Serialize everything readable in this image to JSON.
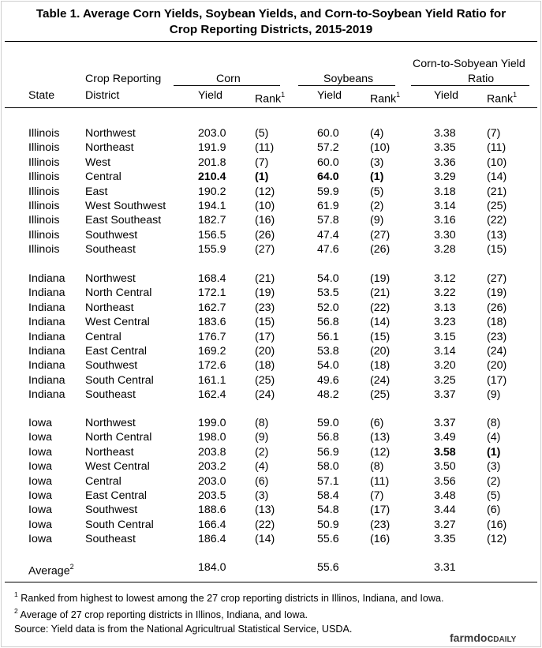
{
  "title": {
    "line1": "Table 1.  Average Corn Yields, Soybean Yields, and Corn-to-Soybean Yield Ratio for",
    "line2": "Crop Reporting Districts, 2015-2019"
  },
  "headers": {
    "state": "State",
    "district_line1": "Crop Reporting",
    "district_line2": "District",
    "corn": "Corn",
    "soybeans": "Soybeans",
    "ratio_line1": "Corn-to-Sobyean Yield",
    "ratio_line2": "Ratio",
    "yield": "Yield",
    "rank": "Rank",
    "rank_sup": "1"
  },
  "groups": [
    {
      "rows": [
        {
          "state": "Illinois",
          "district": "Northwest",
          "corn_yield": "203.0",
          "corn_rank": "(5)",
          "soy_yield": "60.0",
          "soy_rank": "(4)",
          "ratio_yield": "3.38",
          "ratio_rank": "(7)"
        },
        {
          "state": "Illinois",
          "district": "Northeast",
          "corn_yield": "191.9",
          "corn_rank": "(11)",
          "soy_yield": "57.2",
          "soy_rank": "(10)",
          "ratio_yield": "3.35",
          "ratio_rank": "(11)"
        },
        {
          "state": "Illinois",
          "district": "West",
          "corn_yield": "201.8",
          "corn_rank": "(7)",
          "soy_yield": "60.0",
          "soy_rank": "(3)",
          "ratio_yield": "3.36",
          "ratio_rank": "(10)"
        },
        {
          "state": "Illinois",
          "district": "Central",
          "corn_yield": "210.4",
          "corn_rank": "(1)",
          "soy_yield": "64.0",
          "soy_rank": "(1)",
          "ratio_yield": "3.29",
          "ratio_rank": "(14)"
        },
        {
          "state": "Illinois",
          "district": "East",
          "corn_yield": "190.2",
          "corn_rank": "(12)",
          "soy_yield": "59.9",
          "soy_rank": "(5)",
          "ratio_yield": "3.18",
          "ratio_rank": "(21)"
        },
        {
          "state": "Illinois",
          "district": "West Southwest",
          "corn_yield": "194.1",
          "corn_rank": "(10)",
          "soy_yield": "61.9",
          "soy_rank": "(2)",
          "ratio_yield": "3.14",
          "ratio_rank": "(25)"
        },
        {
          "state": "Illinois",
          "district": "East Southeast",
          "corn_yield": "182.7",
          "corn_rank": "(16)",
          "soy_yield": "57.8",
          "soy_rank": "(9)",
          "ratio_yield": "3.16",
          "ratio_rank": "(22)"
        },
        {
          "state": "Illinois",
          "district": "Southwest",
          "corn_yield": "156.5",
          "corn_rank": "(26)",
          "soy_yield": "47.4",
          "soy_rank": "(27)",
          "ratio_yield": "3.30",
          "ratio_rank": "(13)"
        },
        {
          "state": "Illinois",
          "district": "Southeast",
          "corn_yield": "155.9",
          "corn_rank": "(27)",
          "soy_yield": "47.6",
          "soy_rank": "(26)",
          "ratio_yield": "3.28",
          "ratio_rank": "(15)"
        }
      ]
    },
    {
      "rows": [
        {
          "state": "Indiana",
          "district": "Northwest",
          "corn_yield": "168.4",
          "corn_rank": "(21)",
          "soy_yield": "54.0",
          "soy_rank": "(19)",
          "ratio_yield": "3.12",
          "ratio_rank": "(27)"
        },
        {
          "state": "Indiana",
          "district": "North Central",
          "corn_yield": "172.1",
          "corn_rank": "(19)",
          "soy_yield": "53.5",
          "soy_rank": "(21)",
          "ratio_yield": "3.22",
          "ratio_rank": "(19)"
        },
        {
          "state": "Indiana",
          "district": "Northeast",
          "corn_yield": "162.7",
          "corn_rank": "(23)",
          "soy_yield": "52.0",
          "soy_rank": "(22)",
          "ratio_yield": "3.13",
          "ratio_rank": "(26)"
        },
        {
          "state": "Indiana",
          "district": "West Central",
          "corn_yield": "183.6",
          "corn_rank": "(15)",
          "soy_yield": "56.8",
          "soy_rank": "(14)",
          "ratio_yield": "3.23",
          "ratio_rank": "(18)"
        },
        {
          "state": "Indiana",
          "district": "Central",
          "corn_yield": "176.7",
          "corn_rank": "(17)",
          "soy_yield": "56.1",
          "soy_rank": "(15)",
          "ratio_yield": "3.15",
          "ratio_rank": "(23)"
        },
        {
          "state": "Indiana",
          "district": "East Central",
          "corn_yield": "169.2",
          "corn_rank": "(20)",
          "soy_yield": "53.8",
          "soy_rank": "(20)",
          "ratio_yield": "3.14",
          "ratio_rank": "(24)"
        },
        {
          "state": "Indiana",
          "district": "Southwest",
          "corn_yield": "172.6",
          "corn_rank": "(18)",
          "soy_yield": "54.0",
          "soy_rank": "(18)",
          "ratio_yield": "3.20",
          "ratio_rank": "(20)"
        },
        {
          "state": "Indiana",
          "district": "South Central",
          "corn_yield": "161.1",
          "corn_rank": "(25)",
          "soy_yield": "49.6",
          "soy_rank": "(24)",
          "ratio_yield": "3.25",
          "ratio_rank": "(17)"
        },
        {
          "state": "Indiana",
          "district": "Southeast",
          "corn_yield": "162.4",
          "corn_rank": "(24)",
          "soy_yield": "48.2",
          "soy_rank": "(25)",
          "ratio_yield": "3.37",
          "ratio_rank": "(9)"
        }
      ]
    },
    {
      "rows": [
        {
          "state": "Iowa",
          "district": "Northwest",
          "corn_yield": "199.0",
          "corn_rank": "(8)",
          "soy_yield": "59.0",
          "soy_rank": "(6)",
          "ratio_yield": "3.37",
          "ratio_rank": "(8)"
        },
        {
          "state": "Iowa",
          "district": "North Central",
          "corn_yield": "198.0",
          "corn_rank": "(9)",
          "soy_yield": "56.8",
          "soy_rank": "(13)",
          "ratio_yield": "3.49",
          "ratio_rank": "(4)"
        },
        {
          "state": "Iowa",
          "district": "Northeast",
          "corn_yield": "203.8",
          "corn_rank": "(2)",
          "soy_yield": "56.9",
          "soy_rank": "(12)",
          "ratio_yield": "3.58",
          "ratio_rank": "(1)"
        },
        {
          "state": "Iowa",
          "district": "West Central",
          "corn_yield": "203.2",
          "corn_rank": "(4)",
          "soy_yield": "58.0",
          "soy_rank": "(8)",
          "ratio_yield": "3.50",
          "ratio_rank": "(3)"
        },
        {
          "state": "Iowa",
          "district": "Central",
          "corn_yield": "203.0",
          "corn_rank": "(6)",
          "soy_yield": "57.1",
          "soy_rank": "(11)",
          "ratio_yield": "3.56",
          "ratio_rank": "(2)"
        },
        {
          "state": "Iowa",
          "district": "East Central",
          "corn_yield": "203.5",
          "corn_rank": "(3)",
          "soy_yield": "58.4",
          "soy_rank": "(7)",
          "ratio_yield": "3.48",
          "ratio_rank": "(5)"
        },
        {
          "state": "Iowa",
          "district": "Southwest",
          "corn_yield": "188.6",
          "corn_rank": "(13)",
          "soy_yield": "54.8",
          "soy_rank": "(17)",
          "ratio_yield": "3.44",
          "ratio_rank": "(6)"
        },
        {
          "state": "Iowa",
          "district": "South Central",
          "corn_yield": "166.4",
          "corn_rank": "(22)",
          "soy_yield": "50.9",
          "soy_rank": "(23)",
          "ratio_yield": "3.27",
          "ratio_rank": "(16)"
        },
        {
          "state": "Iowa",
          "district": "Southeast",
          "corn_yield": "186.4",
          "corn_rank": "(14)",
          "soy_yield": "55.6",
          "soy_rank": "(16)",
          "ratio_yield": "3.35",
          "ratio_rank": "(12)"
        }
      ]
    }
  ],
  "bold_cells": [
    {
      "group": 0,
      "row": 3,
      "cols": [
        "corn_yield",
        "corn_rank",
        "soy_yield",
        "soy_rank"
      ]
    },
    {
      "group": 2,
      "row": 2,
      "cols": [
        "ratio_yield",
        "ratio_rank"
      ]
    }
  ],
  "average": {
    "label": "Average",
    "label_sup": "2",
    "corn_yield": "184.0",
    "soy_yield": "55.6",
    "ratio_yield": "3.31"
  },
  "notes": {
    "note1_sup": "1",
    "note1": " Ranked from highest to lowest among the 27 crop reporting districts in Illinos, Indiana, and Iowa.",
    "note2_sup": "2",
    "note2": " Average of 27 crop reporting districts in Illinos, Indiana, and Iowa.",
    "source": "Source:  Yield data is from the National Agricultrual Statistical Service, USDA."
  },
  "brand": {
    "name": "farmdoc",
    "suffix": "DAILY"
  }
}
